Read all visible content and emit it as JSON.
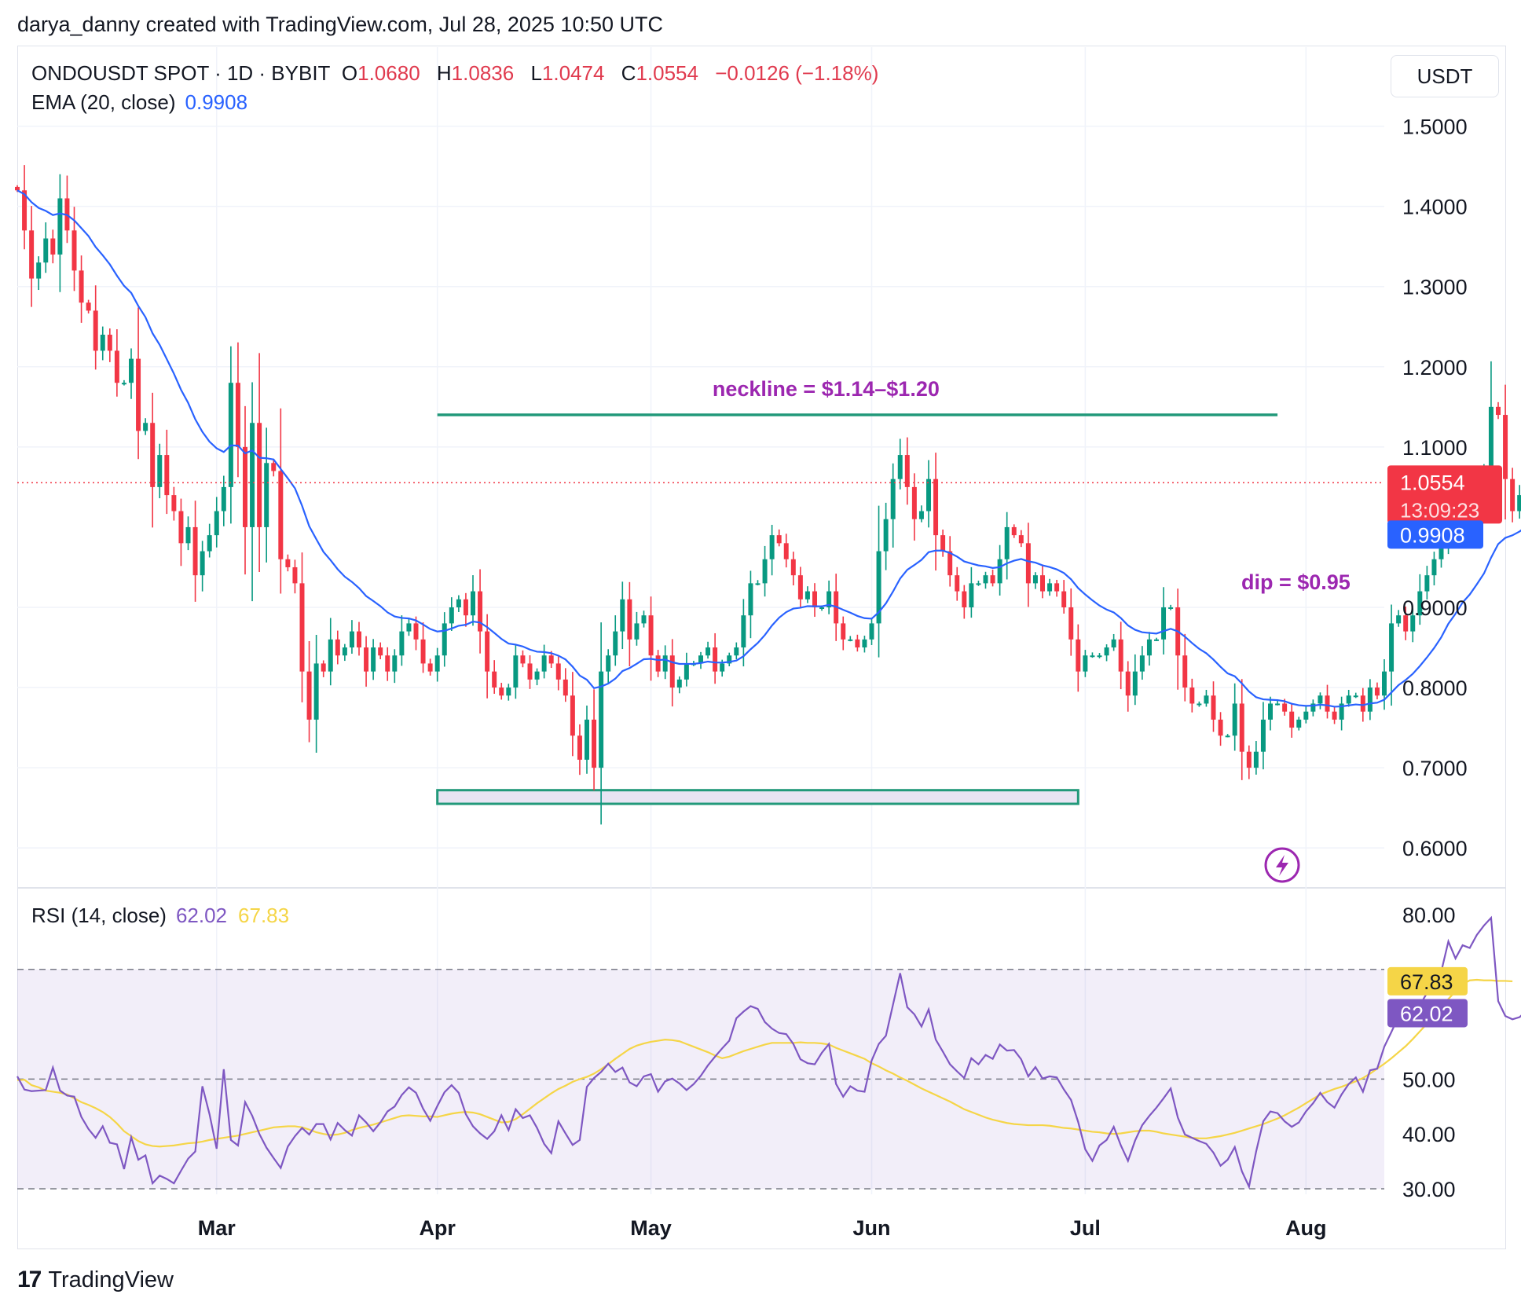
{
  "credit": "darya_danny created with TradingView.com, Jul 28, 2025 10:50 UTC",
  "legend": {
    "symbol": "ONDOUSDT SPOT · 1D · BYBIT",
    "o_label": "O",
    "o": "1.0680",
    "h_label": "H",
    "h": "1.0836",
    "l_label": "L",
    "l": "1.0474",
    "c_label": "C",
    "c": "1.0554",
    "change": "−0.0126 (−1.18%)",
    "ema_label": "EMA (20, close)",
    "ema_value": "0.9908",
    "rsi_label": "RSI (14, close)",
    "rsi_value": "62.02",
    "rsi_ma_value": "67.83"
  },
  "currency": "USDT",
  "logo_text": "TradingView",
  "colors": {
    "up": "#089981",
    "down": "#f23645",
    "ema": "#2962ff",
    "rsi": "#7e57c2",
    "rsi_ma": "#f5d547",
    "annotation": "#9c27b0",
    "zone": "#22997a"
  },
  "chart_data": [
    {
      "type": "candlestick",
      "price_axis_ticks": [
        "1.5000",
        "1.4000",
        "1.3000",
        "1.2000",
        "1.1000",
        "0.9000",
        "0.8000",
        "0.7000",
        "0.6000"
      ],
      "ylim": [
        0.56,
        1.53
      ],
      "time_axis_ticks": [
        "Mar",
        "Apr",
        "May",
        "Jun",
        "Jul",
        "Aug"
      ],
      "x_range": [
        "2025-02-01",
        "2025-08-12"
      ],
      "last_price_label": "1.0554",
      "countdown_label": "13:09:23",
      "ema_label_value": "0.9908",
      "annotations": {
        "neckline": {
          "text": "neckline = $1.14–$1.20",
          "price": 1.14,
          "from": "2025-04-01",
          "to": "2025-07-28"
        },
        "dip": {
          "text": "dip = $0.95"
        },
        "support_zone": {
          "from": "2025-04-01",
          "to": "2025-06-30",
          "low": 0.655,
          "high": 0.672
        }
      },
      "candles": {
        "start_date": "2025-02-01",
        "close": [
          1.42,
          1.37,
          1.31,
          1.33,
          1.36,
          1.34,
          1.41,
          1.37,
          1.32,
          1.28,
          1.27,
          1.22,
          1.24,
          1.22,
          1.18,
          1.18,
          1.21,
          1.12,
          1.13,
          1.05,
          1.09,
          1.04,
          1.02,
          0.98,
          1.0,
          0.94,
          0.97,
          0.99,
          1.02,
          1.05,
          1.18,
          1.1,
          1.0,
          1.13,
          1.0,
          1.08,
          1.07,
          0.96,
          0.95,
          0.93,
          0.82,
          0.76,
          0.83,
          0.82,
          0.86,
          0.84,
          0.85,
          0.87,
          0.85,
          0.82,
          0.85,
          0.84,
          0.82,
          0.84,
          0.87,
          0.88,
          0.86,
          0.83,
          0.82,
          0.84,
          0.88,
          0.9,
          0.91,
          0.89,
          0.92,
          0.87,
          0.82,
          0.8,
          0.79,
          0.8,
          0.84,
          0.83,
          0.81,
          0.82,
          0.84,
          0.83,
          0.81,
          0.79,
          0.74,
          0.71,
          0.76,
          0.7,
          0.82,
          0.84,
          0.87,
          0.91,
          0.86,
          0.88,
          0.89,
          0.84,
          0.82,
          0.84,
          0.8,
          0.81,
          0.83,
          0.83,
          0.84,
          0.85,
          0.82,
          0.83,
          0.84,
          0.85,
          0.89,
          0.93,
          0.93,
          0.96,
          0.99,
          0.98,
          0.96,
          0.94,
          0.91,
          0.92,
          0.9,
          0.9,
          0.92,
          0.88,
          0.86,
          0.86,
          0.85,
          0.86,
          0.88,
          0.97,
          1.01,
          1.06,
          1.09,
          1.05,
          1.01,
          1.02,
          1.06,
          0.99,
          0.97,
          0.94,
          0.92,
          0.9,
          0.93,
          0.93,
          0.94,
          0.93,
          0.96,
          1.0,
          0.99,
          0.98,
          0.93,
          0.94,
          0.92,
          0.93,
          0.92,
          0.9,
          0.86,
          0.82,
          0.84,
          0.84,
          0.84,
          0.85,
          0.86,
          0.82,
          0.79,
          0.82,
          0.84,
          0.86,
          0.86,
          0.9,
          0.9,
          0.84,
          0.8,
          0.78,
          0.78,
          0.79,
          0.76,
          0.74,
          0.74,
          0.78,
          0.72,
          0.7,
          0.72,
          0.76,
          0.78,
          0.78,
          0.77,
          0.75,
          0.76,
          0.77,
          0.78,
          0.79,
          0.77,
          0.76,
          0.78,
          0.79,
          0.79,
          0.77,
          0.8,
          0.79,
          0.82,
          0.88,
          0.89,
          0.87,
          0.89,
          0.92,
          0.94,
          0.96,
          0.99,
          1.04,
          1.01,
          1.04,
          1.01,
          1.05,
          1.07,
          1.15,
          1.14,
          1.06,
          1.02,
          1.04,
          1.06,
          1.08,
          1.0554
        ]
      }
    },
    {
      "type": "line",
      "name": "RSI (14, close)",
      "ylim": [
        29,
        82
      ],
      "axis_ticks": [
        "80.00",
        "50.00",
        "40.00",
        "30.00"
      ],
      "value_labels": [
        "67.83",
        "62.02"
      ],
      "bands": [
        70,
        50,
        30
      ],
      "rsi": [
        50.5,
        48.1,
        47.8,
        47.9,
        48.0,
        52.1,
        47.9,
        47.0,
        46.8,
        43.1,
        40.9,
        39.3,
        41.4,
        38.4,
        38.1,
        33.6,
        39.4,
        35.3,
        36.1,
        31.0,
        32.4,
        31.8,
        31.0,
        33.3,
        35.5,
        36.8,
        48.7,
        43.6,
        37.3,
        51.8,
        38.9,
        37.9,
        45.8,
        43.3,
        40.0,
        37.5,
        35.6,
        33.8,
        37.7,
        39.6,
        41.1,
        39.9,
        41.8,
        41.8,
        39.0,
        42.0,
        40.7,
        39.7,
        43.4,
        42.1,
        40.5,
        42.1,
        44.1,
        45.0,
        47.1,
        48.5,
        47.5,
        44.6,
        42.4,
        45.1,
        47.6,
        48.9,
        47.5,
        43.6,
        41.4,
        40.1,
        39.1,
        40.5,
        43.4,
        40.7,
        44.5,
        42.9,
        43.4,
        41.1,
        38.2,
        36.5,
        42.3,
        40.1,
        38.0,
        38.9,
        48.6,
        50.2,
        51.3,
        52.8,
        51.3,
        52.1,
        49.4,
        48.7,
        50.5,
        50.9,
        47.7,
        49.6,
        50.1,
        49.2,
        48.0,
        49.1,
        50.6,
        52.5,
        54.1,
        55.6,
        57.0,
        61.1,
        62.3,
        63.3,
        62.8,
        60.4,
        59.2,
        58.4,
        58.2,
        56.4,
        53.6,
        52.9,
        52.7,
        54.8,
        56.4,
        49.1,
        46.8,
        48.7,
        47.9,
        47.7,
        53.4,
        56.4,
        57.9,
        63.6,
        69.3,
        63.1,
        61.8,
        59.6,
        62.7,
        57.2,
        55.0,
        52.7,
        51.4,
        50.2,
        53.8,
        52.7,
        54.4,
        53.7,
        56.3,
        55.2,
        55.3,
        53.6,
        50.5,
        52.2,
        50.1,
        50.5,
        50.3,
        48.1,
        46.2,
        42.2,
        37.2,
        35.1,
        37.9,
        38.9,
        41.3,
        37.9,
        35.1,
        38.8,
        41.6,
        43.3,
        44.8,
        46.5,
        48.3,
        43.0,
        39.9,
        39.3,
        38.7,
        38.2,
        36.6,
        34.2,
        35.3,
        37.6,
        33.2,
        30.4,
        36.8,
        42.3,
        44.1,
        43.8,
        42.3,
        41.3,
        42.1,
        44.1,
        45.6,
        47.5,
        45.8,
        44.8,
        47.2,
        49.1,
        50.3,
        47.7,
        51.6,
        51.9,
        55.9,
        58.6,
        61.4,
        60.6,
        61.4,
        63.5,
        65.7,
        67.2,
        69.6,
        75.1,
        72.0,
        74.4,
        73.9,
        76.3,
        78.0,
        79.4,
        64.2,
        61.5,
        60.9,
        61.3,
        62.5,
        64.0,
        62.02
      ],
      "rsi_ma": [
        49.8,
        49.9,
        48.9,
        48.5,
        47.9,
        47.7,
        47.5,
        47.2,
        46.5,
        45.8,
        45.3,
        44.7,
        44.0,
        43.1,
        41.9,
        40.5,
        39.6,
        38.7,
        38.1,
        37.8,
        37.7,
        37.8,
        37.9,
        38.1,
        38.3,
        38.4,
        38.6,
        38.9,
        39.1,
        39.3,
        39.5,
        39.7,
        40.0,
        40.3,
        40.6,
        40.9,
        41.2,
        41.3,
        41.4,
        41.4,
        41.2,
        40.8,
        40.3,
        40.0,
        39.8,
        39.9,
        40.2,
        40.7,
        41.1,
        41.4,
        41.7,
        42.1,
        42.5,
        42.9,
        43.3,
        43.4,
        43.3,
        43.2,
        43.2,
        43.1,
        43.4,
        43.7,
        43.9,
        44.0,
        43.9,
        43.6,
        43.1,
        42.6,
        42.1,
        42.2,
        42.7,
        43.6,
        44.6,
        45.6,
        46.5,
        47.4,
        48.2,
        48.8,
        49.5,
        50.0,
        50.4,
        51.0,
        51.8,
        52.7,
        53.7,
        54.6,
        55.5,
        56.1,
        56.5,
        56.8,
        57.0,
        57.2,
        57.1,
        56.9,
        56.4,
        55.9,
        55.4,
        54.9,
        54.3,
        53.8,
        54.1,
        54.6,
        55.1,
        55.5,
        55.9,
        56.3,
        56.6,
        56.6,
        56.6,
        56.6,
        56.7,
        56.6,
        56.6,
        56.5,
        56.3,
        55.7,
        55.2,
        54.7,
        54.2,
        53.7,
        52.9,
        52.3,
        51.6,
        51.0,
        50.3,
        49.7,
        49.0,
        48.3,
        47.7,
        47.1,
        46.5,
        45.9,
        45.2,
        44.5,
        44.0,
        43.5,
        43.0,
        42.6,
        42.3,
        42.0,
        41.8,
        41.7,
        41.6,
        41.6,
        41.6,
        41.5,
        41.3,
        41.1,
        41.0,
        40.8,
        40.6,
        40.4,
        40.3,
        40.1,
        40.0,
        40.1,
        40.3,
        40.5,
        40.6,
        40.6,
        40.4,
        40.1,
        39.9,
        39.7,
        39.5,
        39.3,
        39.2,
        39.2,
        39.4,
        39.6,
        39.9,
        40.2,
        40.6,
        41.0,
        41.4,
        41.8,
        42.3,
        42.8,
        43.4,
        44.1,
        44.8,
        45.6,
        46.4,
        47.2,
        47.7,
        48.2,
        48.6,
        49.1,
        49.6,
        50.2,
        51.0,
        51.9,
        52.8,
        53.8,
        54.9,
        56.0,
        57.3,
        58.7,
        60.1,
        61.6,
        63.1,
        64.6,
        66.0,
        67.3,
        68.0,
        68.1,
        68.0,
        68.0,
        67.9,
        67.9,
        67.83
      ]
    }
  ]
}
